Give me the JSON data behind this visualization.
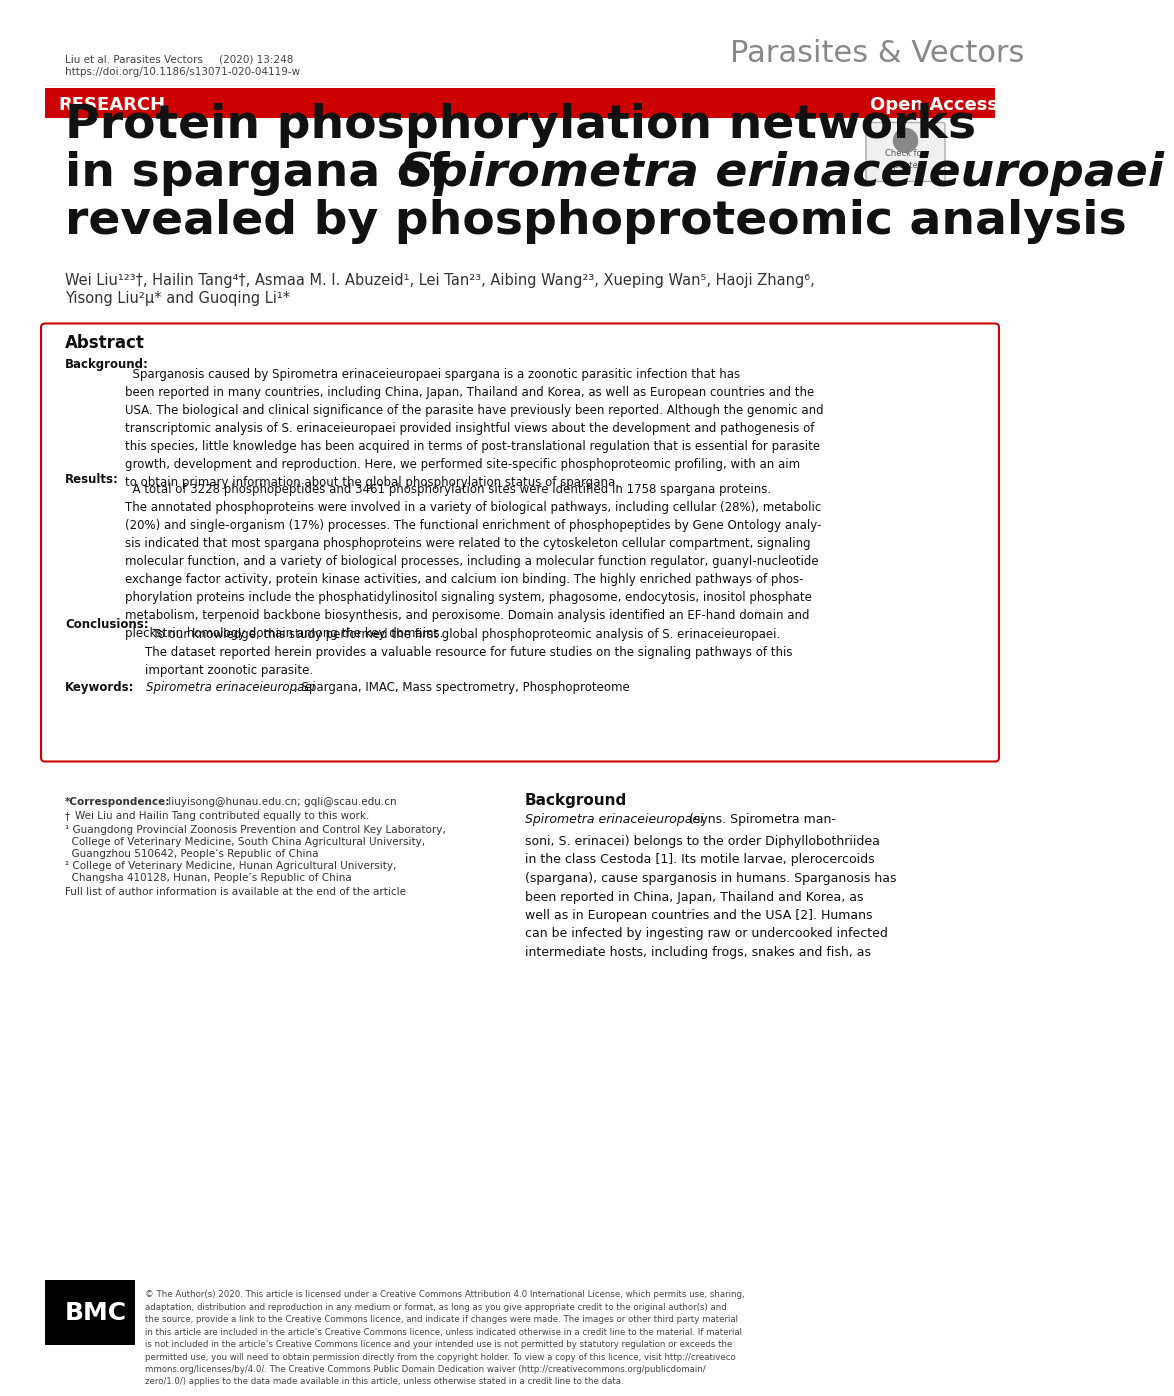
{
  "bg_color": "#ffffff",
  "header_left_line1": "Liu et al. Parasites Vectors     (2020) 13:248",
  "header_left_line2": "https://doi.org/10.1186/s13071-020-04119-w",
  "header_right": "Parasites & Vectors",
  "banner_color": "#cc0000",
  "banner_text_left": "RESEARCH",
  "banner_text_right": "Open Access",
  "title_line1": "Protein phosphorylation networks",
  "title_line2_normal": "in spargana of ",
  "title_line2_italic": "Spirometra erinaceieuropaei",
  "title_line3": "revealed by phosphoproteomic analysis",
  "authors_line1": "Wei Liu¹²³†, Hailin Tang⁴†, Asmaa M. I. Abuzeid¹, Lei Tan²³, Aibing Wang²³, Xueping Wan⁵, Haoji Zhang⁶,",
  "authors_line2": "Yisong Liu²µ* and Guoqing Li¹*",
  "abstract_box_color": "#cc0000",
  "abstract_title": "Abstract",
  "background_label": "Background:",
  "background_text": "  Sparganosis caused by Spirometra erinaceieuropaei spargana is a zoonotic parasitic infection that has been reported in many countries, including China, Japan, Thailand and Korea, as well as European countries and the USA. The biological and clinical significance of the parasite have previously been reported. Although the genomic and transcriptomic analysis of S. erinaceieuropaei provided insightful views about the development and pathogenesis of this species, little knowledge has been acquired in terms of post-translational regulation that is essential for parasite growth, development and reproduction. Here, we performed site-specific phosphoproteomic profiling, with an aim to obtain primary information about the global phosphorylation status of spargana.",
  "results_label": "Results:",
  "results_text": "  A total of 3228 phosphopeptides and 3461 phosphorylation sites were identified in 1758 spargana proteins. The annotated phosphoproteins were involved in a variety of biological pathways, including cellular (28%), metabolic (20%) and single-organism (17%) processes. The functional enrichment of phosphopeptides by Gene Ontology analysis indicated that most spargana phosphoproteins were related to the cytoskeleton cellular compartment, signaling molecular function, and a variety of biological processes, including a molecular function regulator, guanyl-nucleotide exchange factor activity, protein kinase activities, and calcium ion binding. The highly enriched pathways of phosphorylation proteins include the phosphatidylinositol signaling system, phagosome, endocytosis, inositol phosphate metabolism, terpenoid backbone biosynthesis, and peroxisome. Domain analysis identified an EF-hand domain and pleckstrin homology domain among the key domains.",
  "conclusions_label": "Conclusions:",
  "conclusions_text": "  To our knowledge, this study performed the first global phosphoproteomic analysis of S. erinaceieuropaei. The dataset reported herein provides a valuable resource for future studies on the signaling pathways of this important zoonotic parasite.",
  "keywords_label": "Keywords:",
  "keywords_text": "  Spirometra erinaceieuropaei, Spargana, IMAC, Mass spectrometry, Phosphoproteome",
  "background_section_title": "Background",
  "background_section_text1": "Spirometra erinaceieuropaei",
  "background_section_text2": " (syns. Spirometra man-\nsoni, S. erinacei) belongs to the order Diphyllobothriidea\nin the class Cestoda [1]. Its motile larvae, plerocercoids\n(spargana), cause sparganosis in humans. Sparganosis has\nbeen reported in China, Japan, Thailand and Korea, as\nwell as in European countries and the USA [2]. Humans\ncan be infected by ingesting raw or undercooked infected\nintermediate hosts, including frogs, snakes and fish, as",
  "footnote_correspondence": "*Correspondence:  liuyisong@hunau.edu.cn; gqli@scau.edu.cn",
  "footnote_dagger": "†Wei Liu and Hailin Tang contributed equally to this work.",
  "footnote1": "¹ Guangdong Provincial Zoonosis Prevention and Control Key Laboratory,\nCollege of Veterinary Medicine, South China Agricultural University,\nGuangzhou 510642, People’s Republic of China",
  "footnote2": "² College of Veterinary Medicine, Hunan Agricultural University,\nChangsha 410128, Hunan, People’s Republic of China",
  "footnote3": "Full list of author information is available at the end of the article",
  "bmc_color": "#000000",
  "license_text": "© The Author(s) 2020. This article is licensed under a Creative Commons Attribution 4.0 International License, which permits use, sharing, adaptation, distribution and reproduction in any medium or format, as long as you give appropriate credit to the original author(s) and the source, provide a link to the Creative Commons licence, and indicate if changes were made. The images or other third party material in this article are included in the article’s Creative Commons licence, unless indicated otherwise in a credit line to the material. If material is not included in the article’s Creative Commons licence and your intended use is not permitted by statutory regulation or exceeds the permitted use, you will need to obtain permission directly from the copyright holder. To view a copy of this licence, visit http://creativeco mmons.org/licenses/by/4.0/. The Creative Commons Public Domain Dedication waiver (http://creativecommons.org/publicdomain/ zero/1.0/) applies to the data made available in this article, unless otherwise stated in a credit line to the data."
}
